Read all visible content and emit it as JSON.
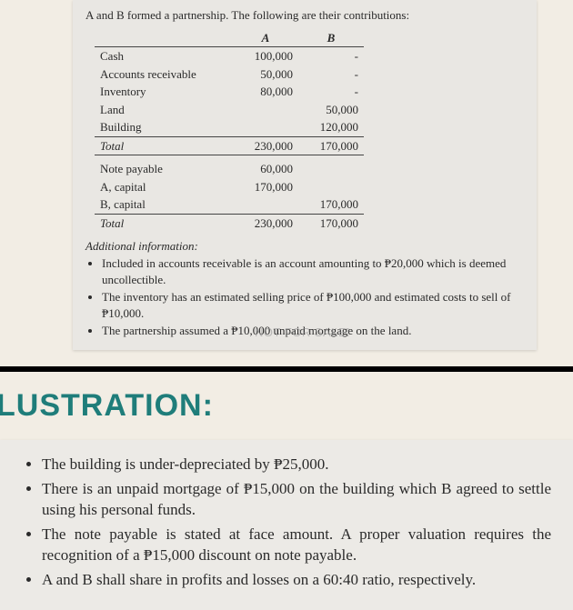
{
  "textbook": {
    "intro": "A and B formed a partnership. The following are their contributions:",
    "table": {
      "col_a": "A",
      "col_b": "B",
      "rows1": [
        {
          "label": "Cash",
          "a": "100,000",
          "b": "-"
        },
        {
          "label": "Accounts receivable",
          "a": "50,000",
          "b": "-"
        },
        {
          "label": "Inventory",
          "a": "80,000",
          "b": "-"
        },
        {
          "label": "Land",
          "a": "",
          "b": "50,000"
        },
        {
          "label": "Building",
          "a": "",
          "b": "120,000"
        }
      ],
      "total1": {
        "label": "Total",
        "a": "230,000",
        "b": "170,000"
      },
      "rows2": [
        {
          "label": "Note payable",
          "a": "60,000",
          "b": ""
        },
        {
          "label": "A, capital",
          "a": "170,000",
          "b": ""
        },
        {
          "label": "B, capital",
          "a": "",
          "b": "170,000"
        }
      ],
      "total2": {
        "label": "Total",
        "a": "230,000",
        "b": "170,000"
      }
    },
    "addl_title": "Additional information:",
    "addl": [
      "Included in accounts receivable is an account amounting to ₱20,000 which is deemed uncollectible.",
      "The inventory has an estimated selling price of ₱100,000 and estimated costs to sell of ₱10,000.",
      "The partnership assumed a ₱10,000 unpaid mortgage on the land."
    ],
    "watermark": "NOT FOR SALE!"
  },
  "heading": "LUSTRATION:",
  "lower_bullets": [
    "The building is under-depreciated by ₱25,000.",
    "There is an unpaid mortgage of ₱15,000 on the building which B agreed to settle using his personal funds.",
    "The note payable is stated at face amount. A proper valuation requires the recognition of a ₱15,000 discount on note payable.",
    "A and B shall share in profits and losses on a 60:40 ratio, respectively."
  ]
}
